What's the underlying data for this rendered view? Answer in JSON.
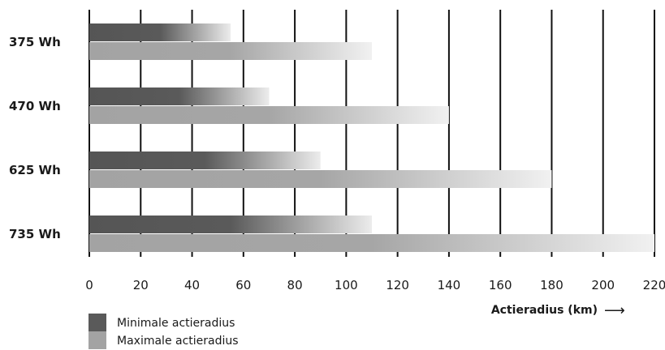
{
  "chart_data": {
    "type": "bar",
    "orientation": "horizontal",
    "categories": [
      "375 Wh",
      "470 Wh",
      "625 Wh",
      "735 Wh"
    ],
    "series": [
      {
        "name": "Minimale actieradius",
        "values": [
          55,
          70,
          90,
          110
        ],
        "color": "#5a5a5a"
      },
      {
        "name": "Maximale actieradius",
        "values": [
          110,
          140,
          180,
          220
        ],
        "color": "#a3a3a3"
      }
    ],
    "xlabel": "Actieradius (km)",
    "xlabel_arrow": "⟶",
    "xticks": [
      0,
      20,
      40,
      60,
      80,
      100,
      120,
      140,
      160,
      180,
      200,
      220
    ],
    "xlim": [
      0,
      220
    ],
    "grid": "vertical",
    "legend_position": "bottom-left"
  }
}
